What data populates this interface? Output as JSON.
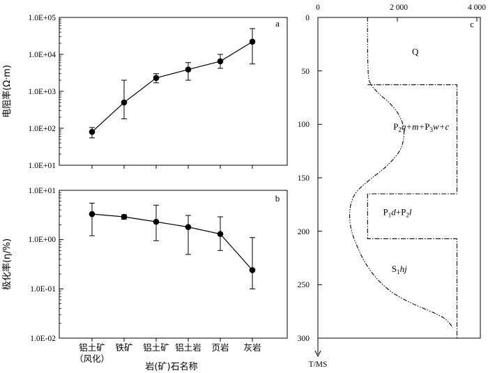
{
  "chart_data": [
    {
      "panel": "a",
      "type": "scatter",
      "categories": [
        "铝土矿\n（风化）",
        "铁矿",
        "铝土矿",
        "铝土岩",
        "页岩",
        "灰岩"
      ],
      "values": [
        80,
        500,
        2300,
        3900,
        6500,
        22000
      ],
      "error_low": [
        55,
        180,
        1700,
        2000,
        4200,
        5500
      ],
      "error_high": [
        105,
        2000,
        3000,
        6000,
        10000,
        50000
      ],
      "yscale": "log",
      "ylim": [
        10,
        100000
      ],
      "yticks": [
        "1.0E+01",
        "1.0E+02",
        "1.0E+03",
        "1.0E+04",
        "1.0E+05"
      ],
      "ylabel": "电阻率(Ω·m)",
      "xlabel": ""
    },
    {
      "panel": "b",
      "type": "scatter",
      "categories": [
        "铝土矿\n（风化）",
        "铁矿",
        "铝土矿",
        "铝土岩",
        "页岩",
        "灰岩"
      ],
      "values": [
        3.3,
        2.9,
        2.3,
        1.8,
        1.3,
        0.24
      ],
      "error_low": [
        1.2,
        2.6,
        0.95,
        0.5,
        0.6,
        0.1
      ],
      "error_high": [
        5.5,
        3.2,
        5.0,
        3.1,
        2.9,
        1.1
      ],
      "yscale": "log",
      "ylim": [
        0.01,
        10
      ],
      "yticks": [
        "1.0E-02",
        "1.0E-01",
        "1.0E+00",
        "1.0E+01"
      ],
      "ylabel": "极化率(η/%)",
      "xlabel": "岩(矿)石名称"
    },
    {
      "panel": "c",
      "type": "line",
      "xlim": [
        0,
        4000
      ],
      "xticks": [
        0,
        2000,
        4000
      ],
      "xtick_labels": [
        "0",
        "2 000",
        "4 000"
      ],
      "ylim": [
        0,
        300
      ],
      "yticks": [
        0,
        50,
        100,
        150,
        200,
        250,
        300
      ],
      "ylabel": "T/MS",
      "inverted_y": true,
      "series": [
        {
          "style": "dash-dot-dot",
          "x": [
            1250,
            1250,
            1260,
            1300,
            1500,
            1800,
            2020,
            2150,
            2150,
            2020,
            1700,
            1300,
            1000,
            850,
            800,
            850,
            1000,
            1200,
            1500,
            1900,
            2400,
            2900,
            3200,
            3400
          ],
          "y": [
            0,
            20,
            45,
            60,
            70,
            80,
            90,
            102,
            115,
            127,
            140,
            152,
            162,
            172,
            185,
            200,
            215,
            230,
            245,
            258,
            268,
            276,
            282,
            290
          ]
        },
        {
          "style": "dash-dot",
          "x": [
            1250,
            3500,
            3500,
            1250,
            1250,
            3500,
            3500
          ],
          "y": [
            63,
            63,
            165,
            165,
            207,
            207,
            300
          ]
        }
      ],
      "layers": [
        {
          "label": "Q",
          "x": 2450,
          "y": 35
        },
        {
          "label": "P2q+m+P3w+c",
          "x": 2600,
          "y": 105
        },
        {
          "label": "P1d+P2l",
          "x": 2000,
          "y": 185
        },
        {
          "label": "S1hj",
          "x": 2050,
          "y": 238
        }
      ]
    }
  ],
  "text": {
    "yticks_a": [
      "1.0E+01",
      "1.0E+02",
      "1.0E+03",
      "1.0E+04",
      "1.0E+05"
    ],
    "yticks_b": [
      "1.0E-02",
      "1.0E-01",
      "1.0E+00",
      "1.0E+01"
    ],
    "cat1_line1": "铝土矿",
    "cat1_line2": "（风化）",
    "cat2": "铁矿",
    "cat3": "铝土矿",
    "cat4": "铝土岩",
    "cat5": "页岩",
    "cat6": "灰岩",
    "ylabel_a": "电阻率(Ω·m)",
    "ylabel_b": "极化率(η/%)",
    "xlabel_b": "岩(矿)石名称",
    "panel_a": "a",
    "panel_b": "b",
    "panel_c": "c",
    "ylabel_c": "T/MS",
    "xticks_c": [
      "0",
      "2 000",
      "4 000"
    ],
    "yticks_c": [
      "0",
      "50",
      "100",
      "150",
      "200",
      "250",
      "300"
    ]
  }
}
